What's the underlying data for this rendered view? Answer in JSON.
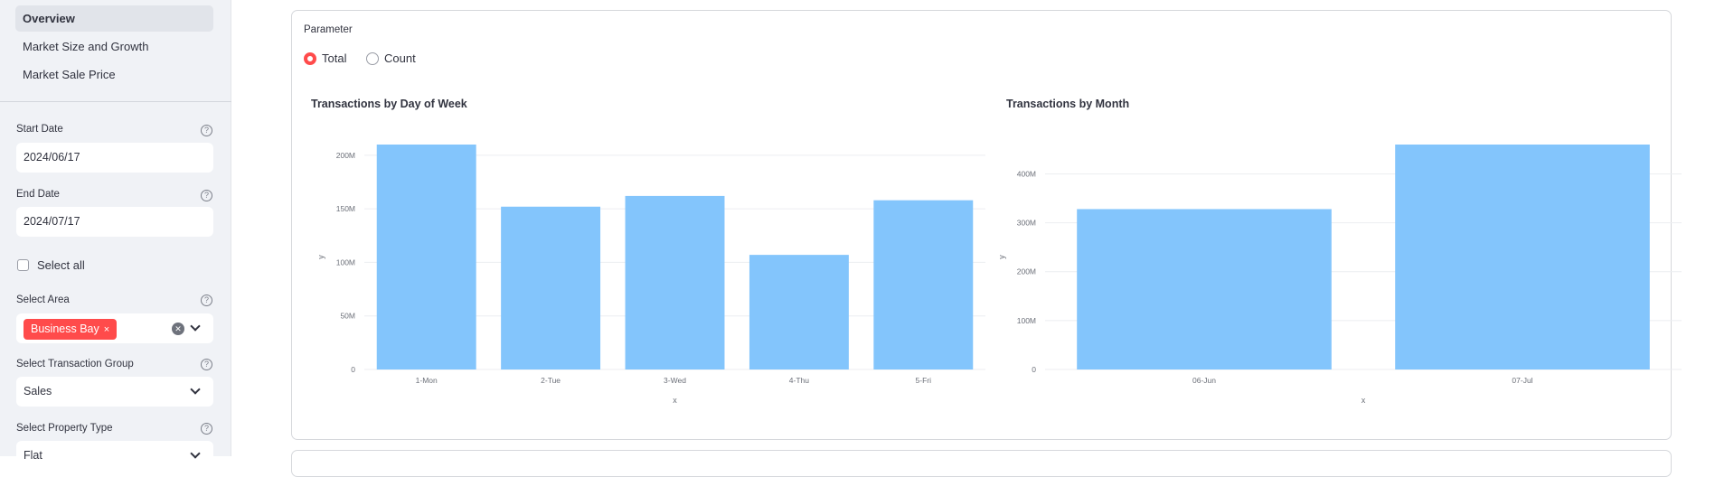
{
  "sidebar": {
    "nav": [
      {
        "label": "Overview",
        "active": true
      },
      {
        "label": "Market Size and Growth",
        "active": false
      },
      {
        "label": "Market Sale Price",
        "active": false
      }
    ],
    "start_date": {
      "label": "Start Date",
      "value": "2024/06/17"
    },
    "end_date": {
      "label": "End Date",
      "value": "2024/07/17"
    },
    "select_all": {
      "label": "Select all",
      "checked": false
    },
    "select_area": {
      "label": "Select Area",
      "tag": "Business Bay",
      "tag_remove": "×"
    },
    "transaction_group": {
      "label": "Select Transaction Group",
      "value": "Sales"
    },
    "property_type": {
      "label": "Select Property Type",
      "value": "Flat"
    }
  },
  "main": {
    "parameter": {
      "label": "Parameter",
      "options": [
        "Total",
        "Count"
      ],
      "selected": "Total"
    }
  },
  "colors": {
    "bar": "#83c5fc",
    "accent": "#ff4b4b",
    "grid": "#eceef1"
  },
  "chart_data": [
    {
      "type": "bar",
      "title": "Transactions by Day of Week",
      "xlabel": "x",
      "ylabel": "y",
      "categories": [
        "1-Mon",
        "2-Tue",
        "3-Wed",
        "4-Thu",
        "5-Fri"
      ],
      "values": [
        210000000,
        152000000,
        162000000,
        107000000,
        158000000
      ],
      "yticks": [
        0,
        50000000,
        100000000,
        150000000,
        200000000
      ],
      "ytick_labels": [
        "0",
        "50M",
        "100M",
        "150M",
        "200M"
      ],
      "ylim": [
        0,
        210000000
      ],
      "grid": true
    },
    {
      "type": "bar",
      "title": "Transactions by Month",
      "xlabel": "x",
      "ylabel": "y",
      "categories": [
        "06-Jun",
        "07-Jul"
      ],
      "values": [
        328000000,
        460000000
      ],
      "yticks": [
        0,
        100000000,
        200000000,
        300000000,
        400000000
      ],
      "ytick_labels": [
        "0",
        "100M",
        "200M",
        "300M",
        "400M"
      ],
      "ylim": [
        0,
        460000000
      ],
      "grid": true
    }
  ]
}
